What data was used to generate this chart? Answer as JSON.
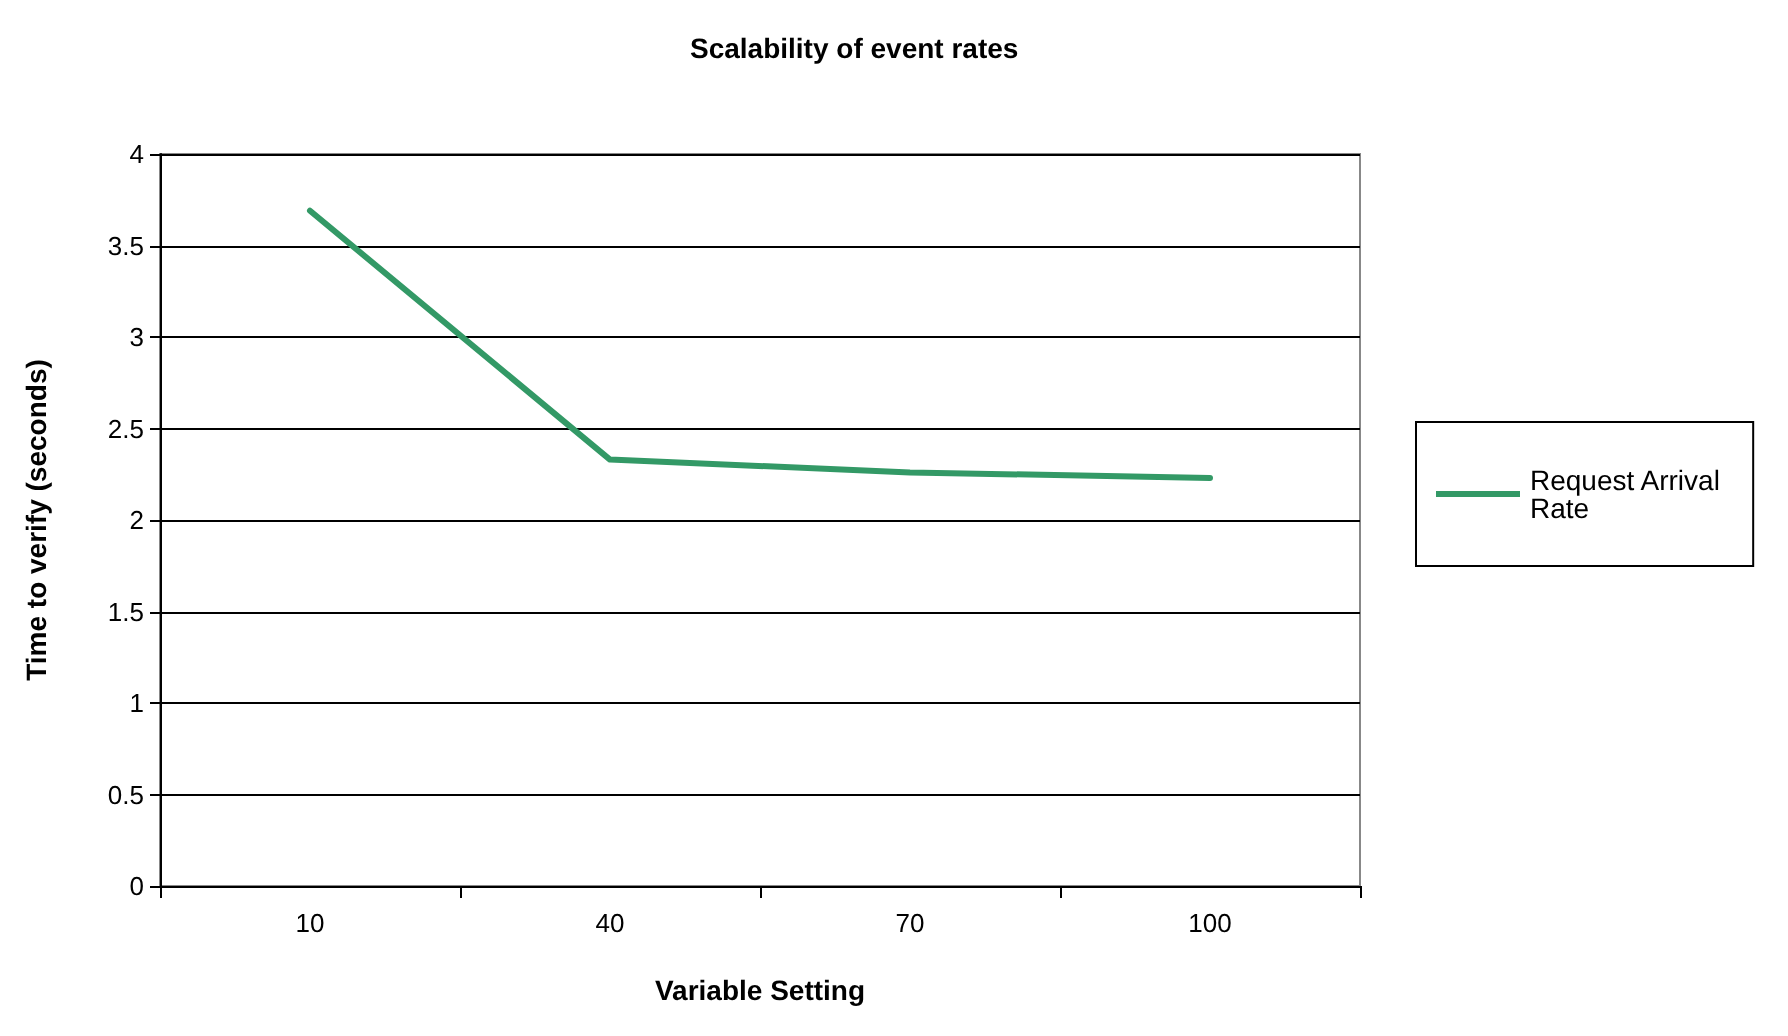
{
  "chart_data": {
    "type": "line",
    "title": "Scalability of event rates",
    "xlabel": "Variable Setting",
    "ylabel": "Time to verify (seconds)",
    "categories": [
      "10",
      "40",
      "70",
      "100"
    ],
    "series": [
      {
        "name": "Request Arrival Rate",
        "color": "#339966",
        "values": [
          3.69,
          2.33,
          2.26,
          2.23
        ]
      }
    ],
    "ylim": [
      0,
      4
    ],
    "yticks": [
      0,
      0.5,
      1,
      1.5,
      2,
      2.5,
      3,
      3.5,
      4
    ],
    "grid": "y",
    "legend": "right",
    "marker": "none"
  }
}
